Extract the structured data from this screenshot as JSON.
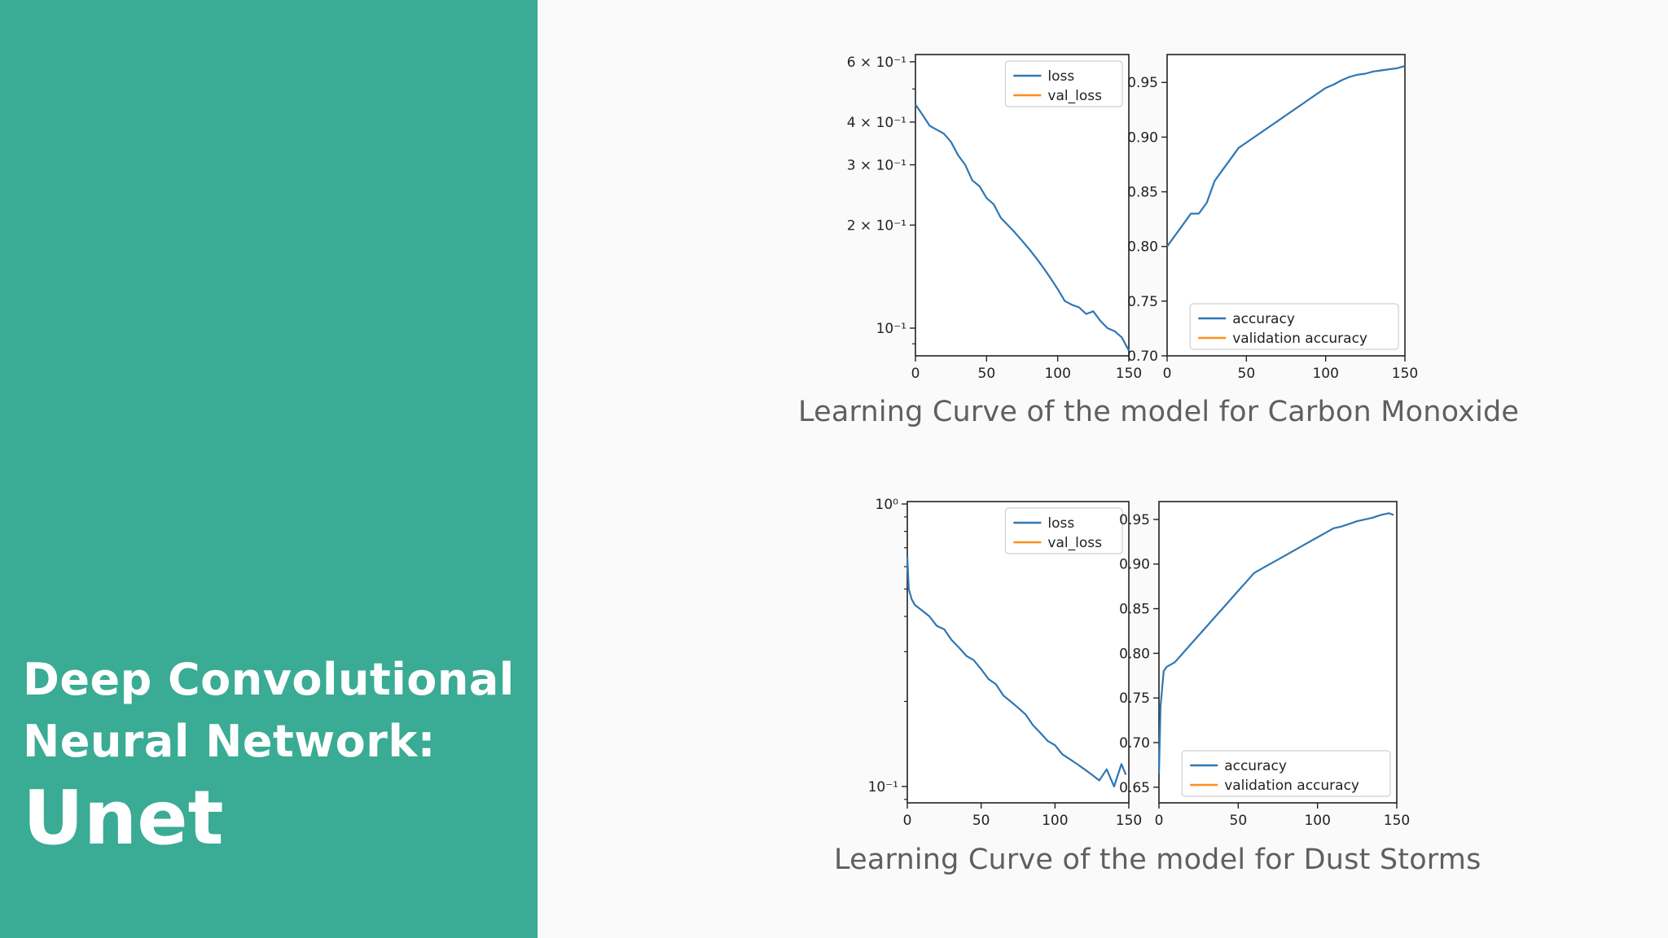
{
  "sidebar": {
    "title_lines": [
      "Deep Convolutional",
      "Neural Network:"
    ],
    "main": "Unet"
  },
  "colors": {
    "sidebar": "#3aab94",
    "train": "#2f77b4",
    "validation": "#ff8c1a",
    "caption": "#5f5f5f"
  },
  "captions": [
    "Learning Curve of the model  for Carbon Monoxide",
    "Learning Curve of the model for Dust Storms"
  ],
  "chart_data": [
    {
      "type": "line",
      "group": "Carbon Monoxide",
      "scale": "log",
      "xlim": [
        0,
        150
      ],
      "ylim": [
        0.083,
        0.63
      ],
      "xticks": [
        0,
        50,
        100,
        150
      ],
      "yticks": [
        {
          "value": 0.6,
          "label": "6 × 10⁻¹"
        },
        {
          "value": 0.4,
          "label": "4 × 10⁻¹"
        },
        {
          "value": 0.3,
          "label": "3 × 10⁻¹"
        },
        {
          "value": 0.2,
          "label": "2 × 10⁻¹"
        },
        {
          "value": 0.1,
          "label": "10⁻¹"
        }
      ],
      "legend": {
        "position": "top-right"
      },
      "series": [
        {
          "name": "loss",
          "x": [
            0,
            5,
            10,
            15,
            20,
            25,
            30,
            35,
            40,
            45,
            50,
            55,
            60,
            65,
            70,
            75,
            80,
            85,
            90,
            95,
            100,
            105,
            110,
            115,
            120,
            125,
            130,
            135,
            140,
            145,
            150
          ],
          "values": [
            0.45,
            0.42,
            0.39,
            0.38,
            0.37,
            0.35,
            0.32,
            0.3,
            0.27,
            0.26,
            0.24,
            0.23,
            0.21,
            0.2,
            0.19,
            0.18,
            0.17,
            0.16,
            0.15,
            0.14,
            0.13,
            0.12,
            0.117,
            0.115,
            0.11,
            0.112,
            0.105,
            0.1,
            0.098,
            0.094,
            0.086
          ]
        },
        {
          "name": "val_loss",
          "x": [],
          "values": []
        }
      ]
    },
    {
      "type": "line",
      "group": "Carbon Monoxide",
      "scale": "linear",
      "xlim": [
        0,
        150
      ],
      "ylim": [
        0.7,
        0.9755
      ],
      "xticks": [
        0,
        50,
        100,
        150
      ],
      "yticks": [
        {
          "value": 0.95,
          "label": "0.95"
        },
        {
          "value": 0.9,
          "label": "0.90"
        },
        {
          "value": 0.85,
          "label": "0.85"
        },
        {
          "value": 0.8,
          "label": "0.80"
        },
        {
          "value": 0.75,
          "label": "0.75"
        },
        {
          "value": 0.7,
          "label": "0.70"
        }
      ],
      "legend": {
        "position": "bottom-right"
      },
      "series": [
        {
          "name": "accuracy",
          "x": [
            0,
            5,
            10,
            15,
            20,
            25,
            30,
            35,
            40,
            45,
            50,
            55,
            60,
            65,
            70,
            75,
            80,
            85,
            90,
            95,
            100,
            105,
            110,
            115,
            120,
            125,
            130,
            135,
            140,
            145,
            150
          ],
          "values": [
            0.8,
            0.81,
            0.82,
            0.83,
            0.83,
            0.84,
            0.86,
            0.87,
            0.88,
            0.89,
            0.895,
            0.9,
            0.905,
            0.91,
            0.915,
            0.92,
            0.925,
            0.93,
            0.935,
            0.94,
            0.945,
            0.948,
            0.952,
            0.955,
            0.957,
            0.958,
            0.96,
            0.961,
            0.962,
            0.963,
            0.965
          ]
        },
        {
          "name": "validation accuracy",
          "x": [],
          "values": []
        }
      ]
    },
    {
      "type": "line",
      "group": "Dust Storms",
      "scale": "log",
      "xlim": [
        0,
        150
      ],
      "ylim": [
        0.0875,
        1.02
      ],
      "xticks": [
        0,
        50,
        100,
        150
      ],
      "yticks": [
        {
          "value": 1.0,
          "label": "10⁰"
        },
        {
          "value": 0.1,
          "label": "10⁻¹"
        }
      ],
      "legend": {
        "position": "top-right"
      },
      "series": [
        {
          "name": "loss",
          "x": [
            0,
            1,
            3,
            5,
            10,
            15,
            20,
            25,
            30,
            35,
            40,
            45,
            50,
            55,
            60,
            65,
            70,
            75,
            80,
            85,
            90,
            95,
            100,
            105,
            110,
            115,
            120,
            125,
            130,
            135,
            140,
            145,
            148
          ],
          "values": [
            0.65,
            0.5,
            0.46,
            0.44,
            0.42,
            0.4,
            0.37,
            0.36,
            0.33,
            0.31,
            0.29,
            0.28,
            0.26,
            0.24,
            0.23,
            0.21,
            0.2,
            0.19,
            0.18,
            0.165,
            0.155,
            0.145,
            0.14,
            0.13,
            0.125,
            0.12,
            0.115,
            0.11,
            0.105,
            0.115,
            0.1,
            0.12,
            0.11
          ]
        },
        {
          "name": "val_loss",
          "x": [],
          "values": []
        }
      ]
    },
    {
      "type": "line",
      "group": "Dust Storms",
      "scale": "linear",
      "xlim": [
        0,
        150
      ],
      "ylim": [
        0.6325,
        0.97
      ],
      "xticks": [
        0,
        50,
        100,
        150
      ],
      "yticks": [
        {
          "value": 0.95,
          "label": "0.95"
        },
        {
          "value": 0.9,
          "label": "0.90"
        },
        {
          "value": 0.85,
          "label": "0.85"
        },
        {
          "value": 0.8,
          "label": "0.80"
        },
        {
          "value": 0.75,
          "label": "0.75"
        },
        {
          "value": 0.7,
          "label": "0.70"
        },
        {
          "value": 0.65,
          "label": "0.65"
        }
      ],
      "legend": {
        "position": "bottom-right"
      },
      "series": [
        {
          "name": "accuracy",
          "x": [
            0,
            1,
            3,
            5,
            10,
            15,
            20,
            25,
            30,
            35,
            40,
            45,
            50,
            55,
            60,
            65,
            70,
            75,
            80,
            85,
            90,
            95,
            100,
            105,
            110,
            115,
            120,
            125,
            130,
            135,
            140,
            145,
            148
          ],
          "values": [
            0.665,
            0.74,
            0.78,
            0.785,
            0.79,
            0.8,
            0.81,
            0.82,
            0.83,
            0.84,
            0.85,
            0.86,
            0.87,
            0.88,
            0.89,
            0.895,
            0.9,
            0.905,
            0.91,
            0.915,
            0.92,
            0.925,
            0.93,
            0.935,
            0.94,
            0.942,
            0.945,
            0.948,
            0.95,
            0.952,
            0.955,
            0.957,
            0.955
          ]
        },
        {
          "name": "validation accuracy",
          "x": [],
          "values": []
        }
      ]
    }
  ]
}
